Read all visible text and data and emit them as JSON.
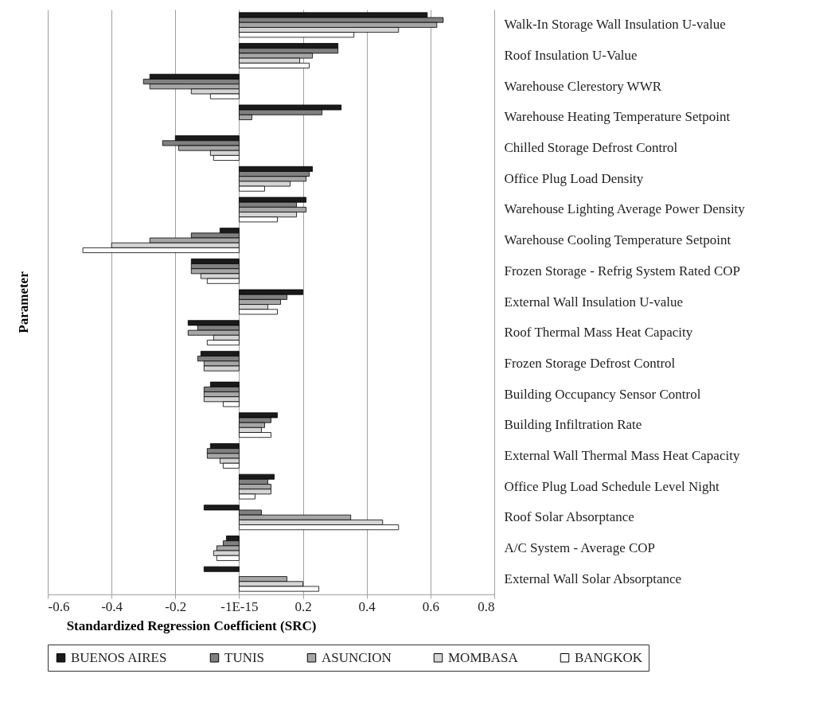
{
  "chart_data": {
    "type": "bar",
    "orientation": "horizontal",
    "xlabel": "Standardized Regression Coefficient (SRC)",
    "ylabel": "Parameter",
    "categories": [
      "Walk-In Storage Wall Insulation U-value",
      "Roof Insulation U-Value",
      "Warehouse Clerestory WWR",
      "Warehouse Heating Temperature Setpoint",
      "Chilled Storage Defrost Control",
      "Office Plug Load Density",
      "Warehouse Lighting Average Power Density",
      "Warehouse Cooling Temperature Setpoint",
      "Frozen Storage - Refrig System Rated COP",
      "External Wall Insulation U-value",
      "Roof Thermal Mass Heat Capacity",
      "Frozen Storage Defrost Control",
      "Building Occupancy Sensor Control",
      "Building Infiltration Rate",
      "External Wall Thermal Mass Heat Capacity",
      "Office Plug Load Schedule Level Night",
      "Roof Solar Absorptance",
      "A/C System - Average COP",
      "External Wall Solar Absorptance"
    ],
    "series": [
      {
        "name": "BUENOS AIRES",
        "color": "#1a1a1a",
        "values": [
          0.59,
          0.31,
          -0.28,
          0.32,
          -0.2,
          0.23,
          0.21,
          -0.06,
          -0.15,
          0.2,
          -0.16,
          -0.12,
          -0.09,
          0.12,
          -0.09,
          0.11,
          -0.11,
          -0.04,
          -0.11
        ]
      },
      {
        "name": "TUNIS",
        "color": "#808080",
        "values": [
          0.64,
          0.31,
          -0.3,
          0.26,
          -0.24,
          0.22,
          0.18,
          -0.15,
          -0.15,
          0.15,
          -0.13,
          -0.13,
          -0.11,
          0.1,
          -0.1,
          0.09,
          0.07,
          -0.05,
          null
        ]
      },
      {
        "name": "ASUNCION",
        "color": "#a6a6a6",
        "values": [
          0.62,
          0.23,
          -0.28,
          0.04,
          -0.19,
          0.21,
          0.21,
          -0.28,
          -0.15,
          0.13,
          -0.16,
          -0.11,
          -0.11,
          0.08,
          -0.1,
          0.1,
          0.35,
          -0.07,
          0.15
        ]
      },
      {
        "name": "MOMBASA",
        "color": "#d4d4d4",
        "values": [
          0.5,
          0.19,
          -0.15,
          null,
          -0.09,
          0.16,
          0.18,
          -0.4,
          -0.12,
          0.09,
          -0.08,
          -0.11,
          -0.11,
          0.07,
          -0.06,
          0.1,
          0.45,
          -0.08,
          0.2
        ]
      },
      {
        "name": "BANGKOK",
        "color": "#ffffff",
        "values": [
          0.36,
          0.22,
          -0.09,
          null,
          -0.08,
          0.08,
          0.12,
          -0.49,
          -0.1,
          0.12,
          -0.1,
          null,
          -0.05,
          0.1,
          -0.05,
          0.05,
          0.5,
          -0.07,
          0.25
        ]
      }
    ],
    "xlim": [
      -0.6,
      0.8
    ],
    "xticks": [
      -0.6,
      -0.4,
      -0.2,
      {
        "value": 0,
        "label": "-1E-15"
      },
      0.2,
      0.4,
      0.6,
      0.8
    ],
    "grid": "x",
    "legend": "bottom"
  }
}
